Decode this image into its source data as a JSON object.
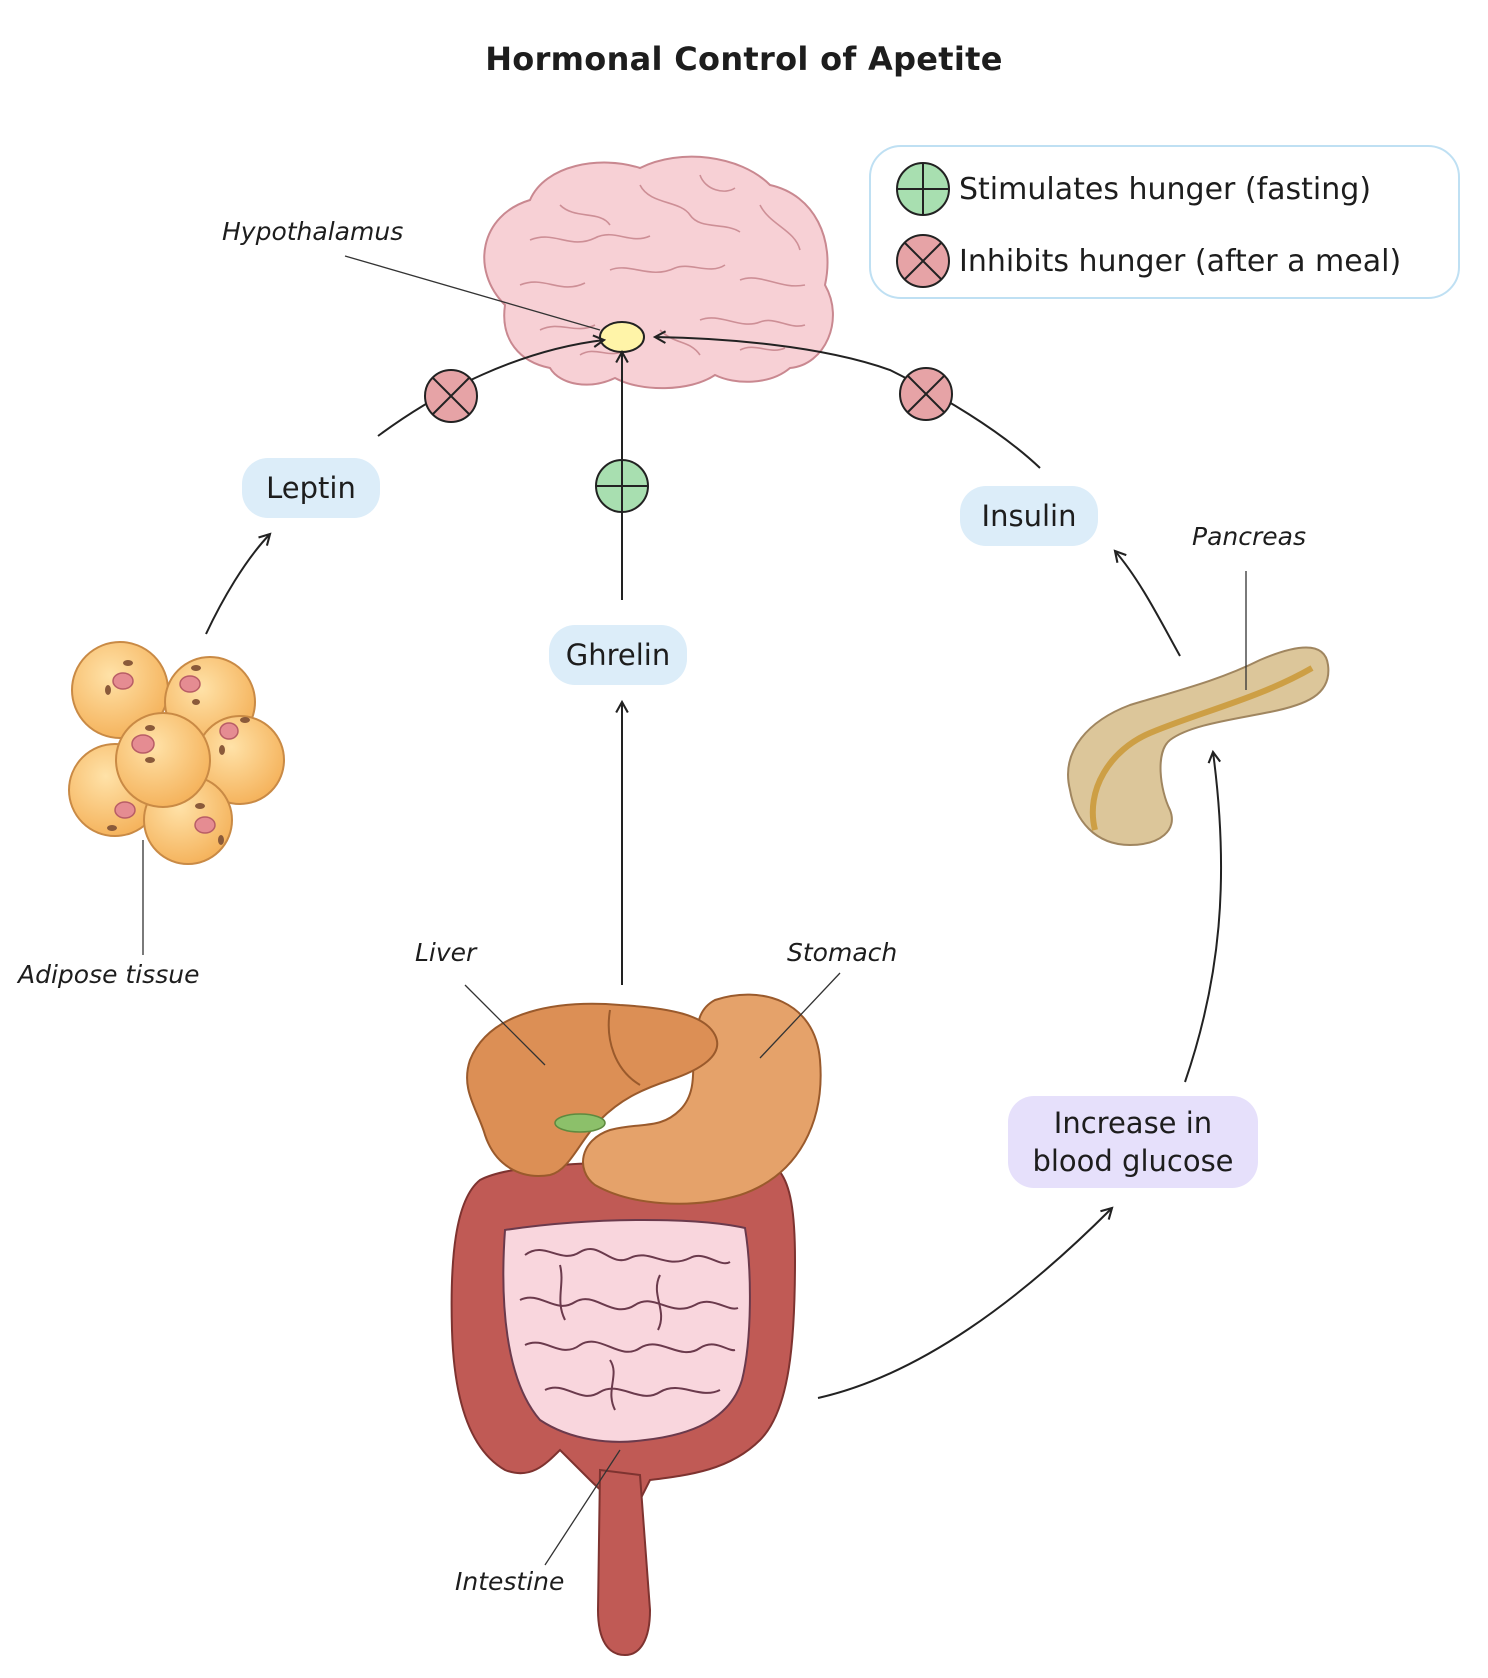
{
  "title": "Hormonal Control of Apetite",
  "legend": {
    "stimulates": "Stimulates hunger (fasting)",
    "inhibits": "Inhibits hunger (after a meal)"
  },
  "hormones": {
    "leptin": "Leptin",
    "ghrelin": "Ghrelin",
    "insulin": "Insulin"
  },
  "effect": {
    "line1": "Increase in",
    "line2": "blood glucose"
  },
  "organs": {
    "hypothalamus": "Hypothalamus",
    "pancreas": "Pancreas",
    "adipose": "Adipose tissue",
    "liver": "Liver",
    "stomach": "Stomach",
    "intestine": "Intestine"
  },
  "colors": {
    "stimulate": "#a8dfb0",
    "inhibit": "#e6a3a6",
    "hormone_pill": "#dcedf9",
    "effect_pill": "#e6e0fb"
  }
}
